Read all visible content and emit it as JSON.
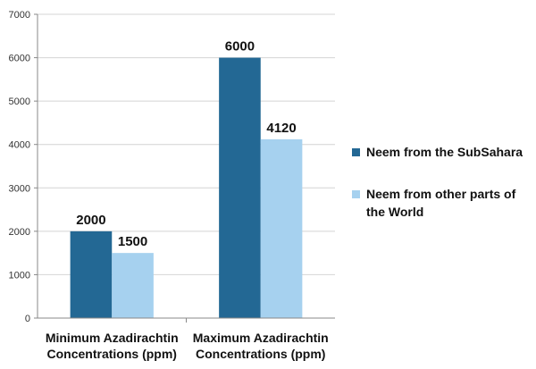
{
  "chart_data": {
    "type": "bar",
    "categories": [
      [
        "Minimum Azadirachtin",
        "Concentrations (ppm)"
      ],
      [
        "Maximum Azadirachtin",
        "Concentrations (ppm)"
      ]
    ],
    "series": [
      {
        "name": [
          "Neem from the SubSahara"
        ],
        "values": [
          2000,
          6000
        ],
        "labels": [
          "2000",
          "6000"
        ],
        "color": "#236894"
      },
      {
        "name": [
          "Neem from other parts of",
          "the World"
        ],
        "values": [
          1500,
          4120
        ],
        "labels": [
          "1500",
          "4120"
        ],
        "color": "#a6d1ef"
      }
    ],
    "yticks": [
      "0",
      "1000",
      "2000",
      "3000",
      "4000",
      "5000",
      "6000",
      "7000"
    ],
    "ylim": [
      0,
      7000
    ],
    "grid": true,
    "legend_position": "right"
  }
}
